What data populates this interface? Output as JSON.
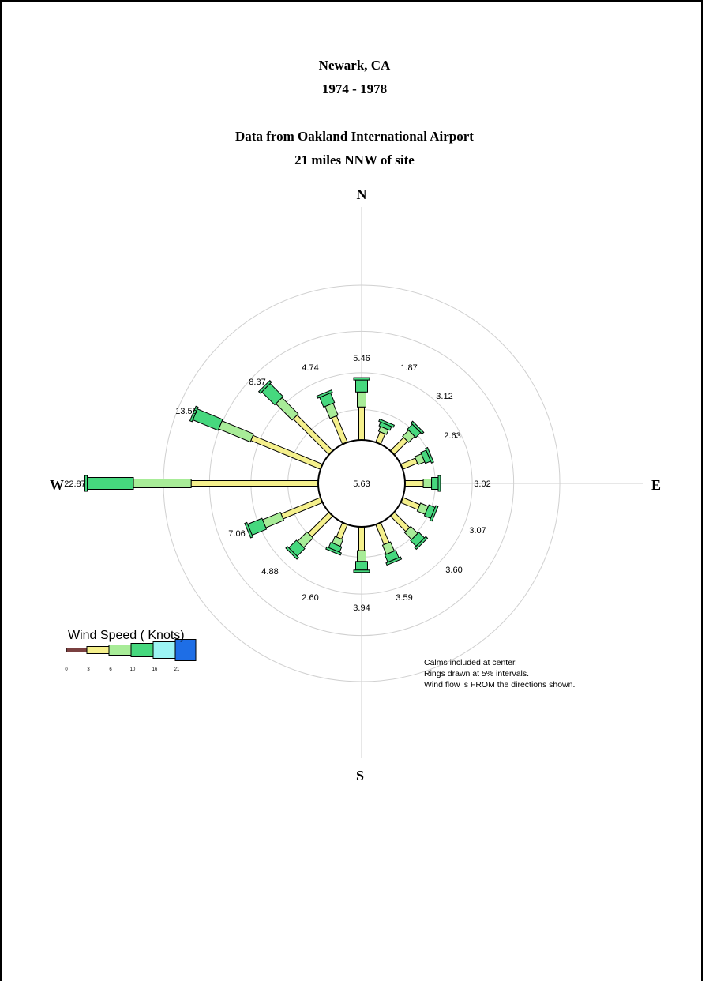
{
  "chart_data": {
    "type": "wind-rose",
    "title_lines": [
      "Newark, CA",
      "1974 - 1978",
      "Data from Oakland International Airport",
      "21 miles NNW of site"
    ],
    "cardinals": {
      "n": "N",
      "e": "E",
      "s": "S",
      "w": "W"
    },
    "directions": [
      "N",
      "NNE",
      "NE",
      "ENE",
      "E",
      "ESE",
      "SE",
      "SSE",
      "S",
      "SSW",
      "SW",
      "WSW",
      "W",
      "WNW",
      "NW",
      "NNW"
    ],
    "percent_labels": [
      "5.46",
      "1.87",
      "3.12",
      "2.63",
      "3.02",
      "3.07",
      "3.60",
      "3.59",
      "3.94",
      "2.60",
      "4.88",
      "7.06",
      "22.87",
      "13.55",
      "8.37",
      "4.74"
    ],
    "values": [
      5.46,
      1.87,
      3.12,
      2.63,
      3.02,
      3.07,
      3.6,
      3.59,
      3.94,
      2.6,
      4.88,
      7.06,
      22.87,
      13.55,
      8.37,
      4.74
    ],
    "calms_label": "5.63",
    "calms": 5.63,
    "ring_interval_percent": 5,
    "speed_bins": [
      "0",
      "3",
      "6",
      "10",
      "16",
      "21"
    ],
    "legend_title": "Wind Speed  ( Knots)",
    "notes": [
      "Calms included at center.",
      "Rings drawn at  5% intervals.",
      "Wind flow is FROM the directions shown."
    ],
    "colors": {
      "bin_0_3": "#7a4040",
      "bin_3_6": "#f5f08c",
      "bin_6_10": "#a8ec98",
      "bin_10_16": "#46d87e",
      "bin_16_21": "#9cf4f4",
      "bin_21_plus": "#1e6ee6",
      "rings": "#d0d0d0",
      "axes": "#cfcfcf"
    }
  }
}
